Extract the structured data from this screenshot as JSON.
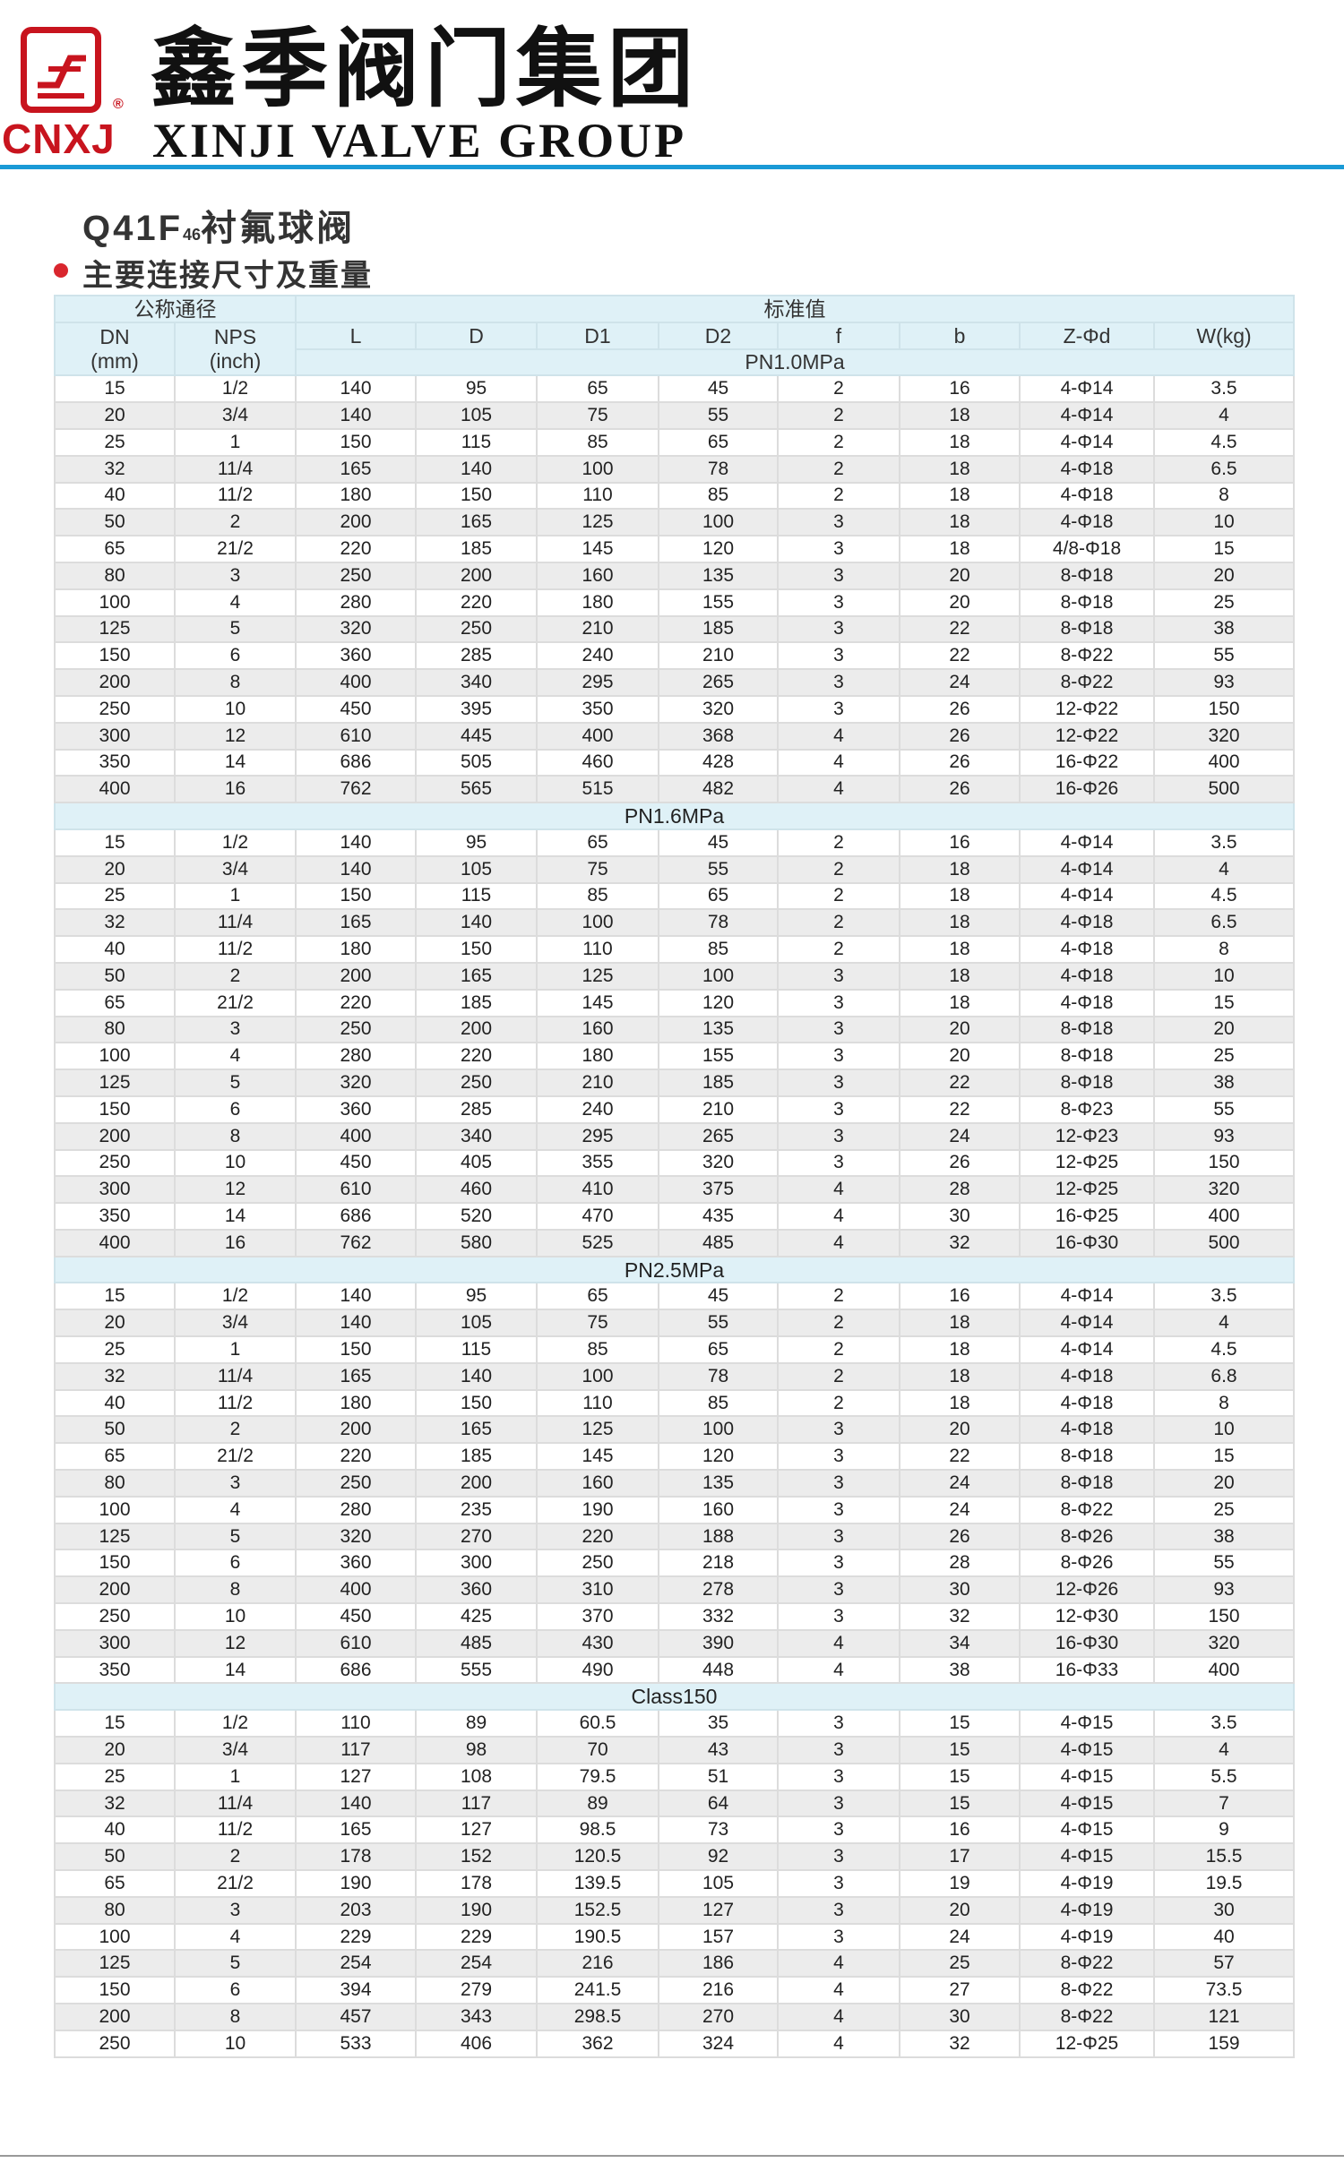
{
  "header": {
    "brand_cn": "鑫季阀门集团",
    "brand_en": "XINJI VALVE GROUP",
    "logo_text": "CNXJ",
    "registered_mark": "®",
    "colors": {
      "brand_red": "#c8141e",
      "rule_blue": "#1a9ad6",
      "table_header": "#dff1f7",
      "row_alt": "#ececec"
    }
  },
  "title": {
    "model": "Q41F",
    "model_sub": "46",
    "name": "衬氟球阀"
  },
  "subtitle": "主要连接尺寸及重量",
  "table": {
    "group_nominal": "公称通径",
    "group_standard": "标准值",
    "dn_label": "DN",
    "dn_unit": "(mm)",
    "nps_label": "NPS",
    "nps_unit": "(inch)",
    "columns": [
      "L",
      "D",
      "D1",
      "D2",
      "f",
      "b",
      "Z-Φd",
      "W(kg)"
    ],
    "sections": [
      {
        "label": "PN1.0MPa",
        "rows": [
          [
            "15",
            "1/2",
            "140",
            "95",
            "65",
            "45",
            "2",
            "16",
            "4-Φ14",
            "3.5"
          ],
          [
            "20",
            "3/4",
            "140",
            "105",
            "75",
            "55",
            "2",
            "18",
            "4-Φ14",
            "4"
          ],
          [
            "25",
            "1",
            "150",
            "115",
            "85",
            "65",
            "2",
            "18",
            "4-Φ14",
            "4.5"
          ],
          [
            "32",
            "11/4",
            "165",
            "140",
            "100",
            "78",
            "2",
            "18",
            "4-Φ18",
            "6.5"
          ],
          [
            "40",
            "11/2",
            "180",
            "150",
            "110",
            "85",
            "2",
            "18",
            "4-Φ18",
            "8"
          ],
          [
            "50",
            "2",
            "200",
            "165",
            "125",
            "100",
            "3",
            "18",
            "4-Φ18",
            "10"
          ],
          [
            "65",
            "21/2",
            "220",
            "185",
            "145",
            "120",
            "3",
            "18",
            "4/8-Φ18",
            "15"
          ],
          [
            "80",
            "3",
            "250",
            "200",
            "160",
            "135",
            "3",
            "20",
            "8-Φ18",
            "20"
          ],
          [
            "100",
            "4",
            "280",
            "220",
            "180",
            "155",
            "3",
            "20",
            "8-Φ18",
            "25"
          ],
          [
            "125",
            "5",
            "320",
            "250",
            "210",
            "185",
            "3",
            "22",
            "8-Φ18",
            "38"
          ],
          [
            "150",
            "6",
            "360",
            "285",
            "240",
            "210",
            "3",
            "22",
            "8-Φ22",
            "55"
          ],
          [
            "200",
            "8",
            "400",
            "340",
            "295",
            "265",
            "3",
            "24",
            "8-Φ22",
            "93"
          ],
          [
            "250",
            "10",
            "450",
            "395",
            "350",
            "320",
            "3",
            "26",
            "12-Φ22",
            "150"
          ],
          [
            "300",
            "12",
            "610",
            "445",
            "400",
            "368",
            "4",
            "26",
            "12-Φ22",
            "320"
          ],
          [
            "350",
            "14",
            "686",
            "505",
            "460",
            "428",
            "4",
            "26",
            "16-Φ22",
            "400"
          ],
          [
            "400",
            "16",
            "762",
            "565",
            "515",
            "482",
            "4",
            "26",
            "16-Φ26",
            "500"
          ]
        ]
      },
      {
        "label": "PN1.6MPa",
        "rows": [
          [
            "15",
            "1/2",
            "140",
            "95",
            "65",
            "45",
            "2",
            "16",
            "4-Φ14",
            "3.5"
          ],
          [
            "20",
            "3/4",
            "140",
            "105",
            "75",
            "55",
            "2",
            "18",
            "4-Φ14",
            "4"
          ],
          [
            "25",
            "1",
            "150",
            "115",
            "85",
            "65",
            "2",
            "18",
            "4-Φ14",
            "4.5"
          ],
          [
            "32",
            "11/4",
            "165",
            "140",
            "100",
            "78",
            "2",
            "18",
            "4-Φ18",
            "6.5"
          ],
          [
            "40",
            "11/2",
            "180",
            "150",
            "110",
            "85",
            "2",
            "18",
            "4-Φ18",
            "8"
          ],
          [
            "50",
            "2",
            "200",
            "165",
            "125",
            "100",
            "3",
            "18",
            "4-Φ18",
            "10"
          ],
          [
            "65",
            "21/2",
            "220",
            "185",
            "145",
            "120",
            "3",
            "18",
            "4-Φ18",
            "15"
          ],
          [
            "80",
            "3",
            "250",
            "200",
            "160",
            "135",
            "3",
            "20",
            "8-Φ18",
            "20"
          ],
          [
            "100",
            "4",
            "280",
            "220",
            "180",
            "155",
            "3",
            "20",
            "8-Φ18",
            "25"
          ],
          [
            "125",
            "5",
            "320",
            "250",
            "210",
            "185",
            "3",
            "22",
            "8-Φ18",
            "38"
          ],
          [
            "150",
            "6",
            "360",
            "285",
            "240",
            "210",
            "3",
            "22",
            "8-Φ23",
            "55"
          ],
          [
            "200",
            "8",
            "400",
            "340",
            "295",
            "265",
            "3",
            "24",
            "12-Φ23",
            "93"
          ],
          [
            "250",
            "10",
            "450",
            "405",
            "355",
            "320",
            "3",
            "26",
            "12-Φ25",
            "150"
          ],
          [
            "300",
            "12",
            "610",
            "460",
            "410",
            "375",
            "4",
            "28",
            "12-Φ25",
            "320"
          ],
          [
            "350",
            "14",
            "686",
            "520",
            "470",
            "435",
            "4",
            "30",
            "16-Φ25",
            "400"
          ],
          [
            "400",
            "16",
            "762",
            "580",
            "525",
            "485",
            "4",
            "32",
            "16-Φ30",
            "500"
          ]
        ]
      },
      {
        "label": "PN2.5MPa",
        "rows": [
          [
            "15",
            "1/2",
            "140",
            "95",
            "65",
            "45",
            "2",
            "16",
            "4-Φ14",
            "3.5"
          ],
          [
            "20",
            "3/4",
            "140",
            "105",
            "75",
            "55",
            "2",
            "18",
            "4-Φ14",
            "4"
          ],
          [
            "25",
            "1",
            "150",
            "115",
            "85",
            "65",
            "2",
            "18",
            "4-Φ14",
            "4.5"
          ],
          [
            "32",
            "11/4",
            "165",
            "140",
            "100",
            "78",
            "2",
            "18",
            "4-Φ18",
            "6.8"
          ],
          [
            "40",
            "11/2",
            "180",
            "150",
            "110",
            "85",
            "2",
            "18",
            "4-Φ18",
            "8"
          ],
          [
            "50",
            "2",
            "200",
            "165",
            "125",
            "100",
            "3",
            "20",
            "4-Φ18",
            "10"
          ],
          [
            "65",
            "21/2",
            "220",
            "185",
            "145",
            "120",
            "3",
            "22",
            "8-Φ18",
            "15"
          ],
          [
            "80",
            "3",
            "250",
            "200",
            "160",
            "135",
            "3",
            "24",
            "8-Φ18",
            "20"
          ],
          [
            "100",
            "4",
            "280",
            "235",
            "190",
            "160",
            "3",
            "24",
            "8-Φ22",
            "25"
          ],
          [
            "125",
            "5",
            "320",
            "270",
            "220",
            "188",
            "3",
            "26",
            "8-Φ26",
            "38"
          ],
          [
            "150",
            "6",
            "360",
            "300",
            "250",
            "218",
            "3",
            "28",
            "8-Φ26",
            "55"
          ],
          [
            "200",
            "8",
            "400",
            "360",
            "310",
            "278",
            "3",
            "30",
            "12-Φ26",
            "93"
          ],
          [
            "250",
            "10",
            "450",
            "425",
            "370",
            "332",
            "3",
            "32",
            "12-Φ30",
            "150"
          ],
          [
            "300",
            "12",
            "610",
            "485",
            "430",
            "390",
            "4",
            "34",
            "16-Φ30",
            "320"
          ],
          [
            "350",
            "14",
            "686",
            "555",
            "490",
            "448",
            "4",
            "38",
            "16-Φ33",
            "400"
          ]
        ]
      },
      {
        "label": "Class150",
        "rows": [
          [
            "15",
            "1/2",
            "110",
            "89",
            "60.5",
            "35",
            "3",
            "15",
            "4-Φ15",
            "3.5"
          ],
          [
            "20",
            "3/4",
            "117",
            "98",
            "70",
            "43",
            "3",
            "15",
            "4-Φ15",
            "4"
          ],
          [
            "25",
            "1",
            "127",
            "108",
            "79.5",
            "51",
            "3",
            "15",
            "4-Φ15",
            "5.5"
          ],
          [
            "32",
            "11/4",
            "140",
            "117",
            "89",
            "64",
            "3",
            "15",
            "4-Φ15",
            "7"
          ],
          [
            "40",
            "11/2",
            "165",
            "127",
            "98.5",
            "73",
            "3",
            "16",
            "4-Φ15",
            "9"
          ],
          [
            "50",
            "2",
            "178",
            "152",
            "120.5",
            "92",
            "3",
            "17",
            "4-Φ15",
            "15.5"
          ],
          [
            "65",
            "21/2",
            "190",
            "178",
            "139.5",
            "105",
            "3",
            "19",
            "4-Φ19",
            "19.5"
          ],
          [
            "80",
            "3",
            "203",
            "190",
            "152.5",
            "127",
            "3",
            "20",
            "4-Φ19",
            "30"
          ],
          [
            "100",
            "4",
            "229",
            "229",
            "190.5",
            "157",
            "3",
            "24",
            "4-Φ19",
            "40"
          ],
          [
            "125",
            "5",
            "254",
            "254",
            "216",
            "186",
            "4",
            "25",
            "8-Φ22",
            "57"
          ],
          [
            "150",
            "6",
            "394",
            "279",
            "241.5",
            "216",
            "4",
            "27",
            "8-Φ22",
            "73.5"
          ],
          [
            "200",
            "8",
            "457",
            "343",
            "298.5",
            "270",
            "4",
            "30",
            "8-Φ22",
            "121"
          ],
          [
            "250",
            "10",
            "533",
            "406",
            "362",
            "324",
            "4",
            "32",
            "12-Φ25",
            "159"
          ]
        ]
      }
    ]
  }
}
